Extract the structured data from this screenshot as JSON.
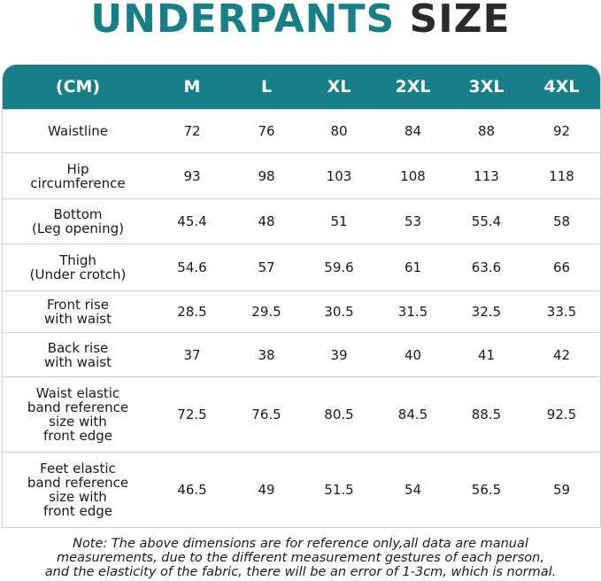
{
  "title": {
    "part1": "UNDERPANTS",
    "part2": "SIZE"
  },
  "colors": {
    "teal": "#167f88",
    "dark": "#2a2a2a"
  },
  "table": {
    "headers": [
      "(CM)",
      "M",
      "L",
      "XL",
      "2XL",
      "3XL",
      "4XL"
    ],
    "rows": [
      {
        "label": "Waistline",
        "values": [
          "72",
          "76",
          "80",
          "84",
          "88",
          "92"
        ]
      },
      {
        "label": "Hip\ncircumference",
        "values": [
          "93",
          "98",
          "103",
          "108",
          "113",
          "118"
        ]
      },
      {
        "label": "Bottom\n(Leg opening)",
        "values": [
          "45.4",
          "48",
          "51",
          "53",
          "55.4",
          "58"
        ]
      },
      {
        "label": "Thigh\n(Under crotch)",
        "values": [
          "54.6",
          "57",
          "59.6",
          "61",
          "63.6",
          "66"
        ]
      },
      {
        "label": "Front rise\nwith waist",
        "values": [
          "28.5",
          "29.5",
          "30.5",
          "31.5",
          "32.5",
          "33.5"
        ]
      },
      {
        "label": "Back rise\nwith waist",
        "values": [
          "37",
          "38",
          "39",
          "40",
          "41",
          "42"
        ]
      },
      {
        "label": "Waist elastic\nband reference\nsize with\nfront edge",
        "values": [
          "72.5",
          "76.5",
          "80.5",
          "84.5",
          "88.5",
          "92.5"
        ]
      },
      {
        "label": "Feet elastic\nband reference\nsize with\nfront edge",
        "values": [
          "46.5",
          "49",
          "51.5",
          "54",
          "56.5",
          "59"
        ]
      }
    ]
  },
  "note": {
    "line1": "Note: The above dimensions are for reference only,all data are manual",
    "line2": "measurements, due to the different measurement gestures of each person,",
    "line3": "and the elasticity of the fabric, there will be an error of 1-3cm, which is normal."
  }
}
